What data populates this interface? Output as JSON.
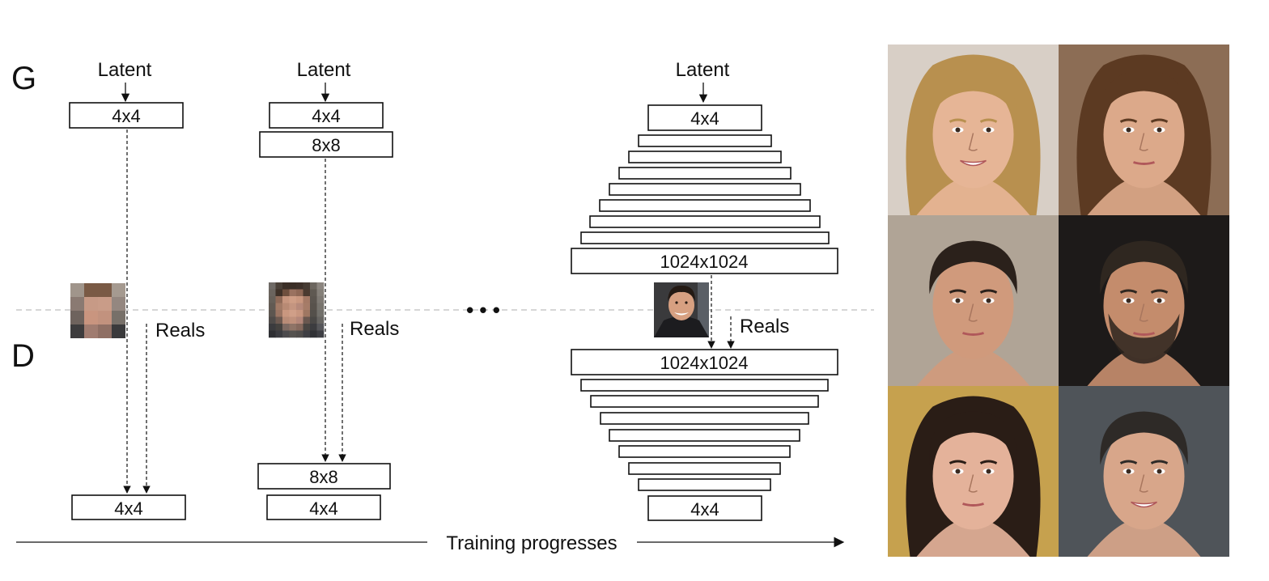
{
  "labels": {
    "generator": "G",
    "discriminator": "D",
    "latent": "Latent",
    "reals": "Reals",
    "training": "Training progresses",
    "ellipsis": "• • •"
  },
  "stage1": {
    "g_layers": [
      "4x4"
    ],
    "d_layers": [
      "4x4"
    ]
  },
  "stage2": {
    "g_layers": [
      "4x4",
      "8x8"
    ],
    "d_layers": [
      "8x8",
      "4x4"
    ]
  },
  "stage3": {
    "g_top": "4x4",
    "g_bottom": "1024x1024",
    "d_top": "1024x1024",
    "d_bottom": "4x4",
    "hidden_layers_each_side": 7
  },
  "thumbnails": {
    "stage1": {
      "resolution": "4x4",
      "style": "pixelated-face"
    },
    "stage2": {
      "resolution": "8x8",
      "style": "pixelated-face"
    },
    "stage3": {
      "resolution": "1024x1024",
      "style": "smiling-man-photo"
    }
  },
  "sample_grid": {
    "rows": 3,
    "cols": 2,
    "samples": [
      {
        "description": "woman-blonde-wavy-hair",
        "hair": "#b8904f",
        "skin": "#e6b596",
        "bg": "#d8cfc6"
      },
      {
        "description": "woman-brown-hair",
        "hair": "#5c3a22",
        "skin": "#dca98a",
        "bg": "#8c6d55"
      },
      {
        "description": "man-dark-hair",
        "hair": "#2b211b",
        "skin": "#d09a7c",
        "bg": "#b0a496"
      },
      {
        "description": "man-beard",
        "hair": "#2f2720",
        "skin": "#c48c6c",
        "bg": "#1d1a19"
      },
      {
        "description": "woman-dark-bangs",
        "hair": "#2a1d16",
        "skin": "#e4b29a",
        "bg": "#c6a14e"
      },
      {
        "description": "man-smiling",
        "hair": "#2e2a27",
        "skin": "#d8a68a",
        "bg": "#4f5459"
      }
    ]
  },
  "colors": {
    "ink": "#111111",
    "separator": "#bdbdbd"
  }
}
